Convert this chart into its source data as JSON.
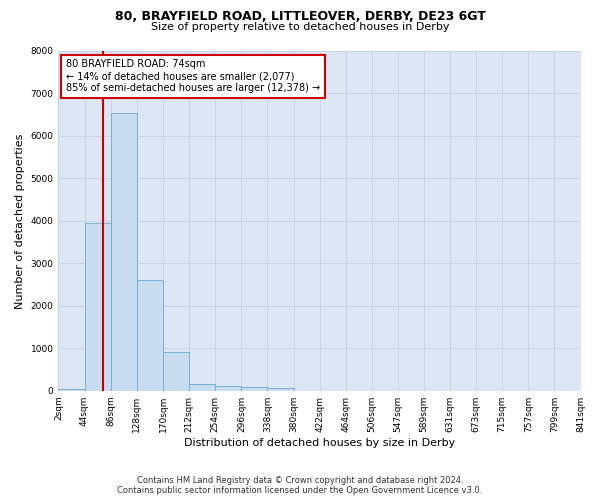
{
  "title1": "80, BRAYFIELD ROAD, LITTLEOVER, DERBY, DE23 6GT",
  "title2": "Size of property relative to detached houses in Derby",
  "xlabel": "Distribution of detached houses by size in Derby",
  "ylabel": "Number of detached properties",
  "footer1": "Contains HM Land Registry data © Crown copyright and database right 2024.",
  "footer2": "Contains public sector information licensed under the Open Government Licence v3.0.",
  "annotation_title": "80 BRAYFIELD ROAD: 74sqm",
  "annotation_line1": "← 14% of detached houses are smaller (2,077)",
  "annotation_line2": "85% of semi-detached houses are larger (12,378) →",
  "property_size_sqm": 74,
  "bin_edges": [
    2,
    44,
    86,
    128,
    170,
    212,
    254,
    296,
    338,
    380,
    422,
    464,
    506,
    547,
    589,
    631,
    673,
    715,
    757,
    799,
    841
  ],
  "bin_labels": [
    "2sqm",
    "44sqm",
    "86sqm",
    "128sqm",
    "170sqm",
    "212sqm",
    "254sqm",
    "296sqm",
    "338sqm",
    "380sqm",
    "422sqm",
    "464sqm",
    "506sqm",
    "547sqm",
    "589sqm",
    "631sqm",
    "673sqm",
    "715sqm",
    "757sqm",
    "799sqm",
    "841sqm"
  ],
  "counts": [
    50,
    3950,
    6550,
    2600,
    900,
    150,
    100,
    80,
    60,
    0,
    0,
    0,
    0,
    0,
    0,
    0,
    0,
    0,
    0,
    0
  ],
  "bar_color": "#c9ddf0",
  "bar_edge_color": "#6aaad4",
  "vline_color": "#cc0000",
  "annotation_box_facecolor": "#ffffff",
  "annotation_box_edgecolor": "#cc0000",
  "grid_color": "#c8d4e8",
  "plot_bg_color": "#dce6f5",
  "fig_bg_color": "#ffffff",
  "ylim": [
    0,
    8000
  ],
  "yticks": [
    0,
    1000,
    2000,
    3000,
    4000,
    5000,
    6000,
    7000,
    8000
  ],
  "title1_fontsize": 9,
  "title2_fontsize": 8,
  "ylabel_fontsize": 8,
  "xlabel_fontsize": 8,
  "tick_label_fontsize": 6.5,
  "annotation_fontsize": 7,
  "footer_fontsize": 6
}
